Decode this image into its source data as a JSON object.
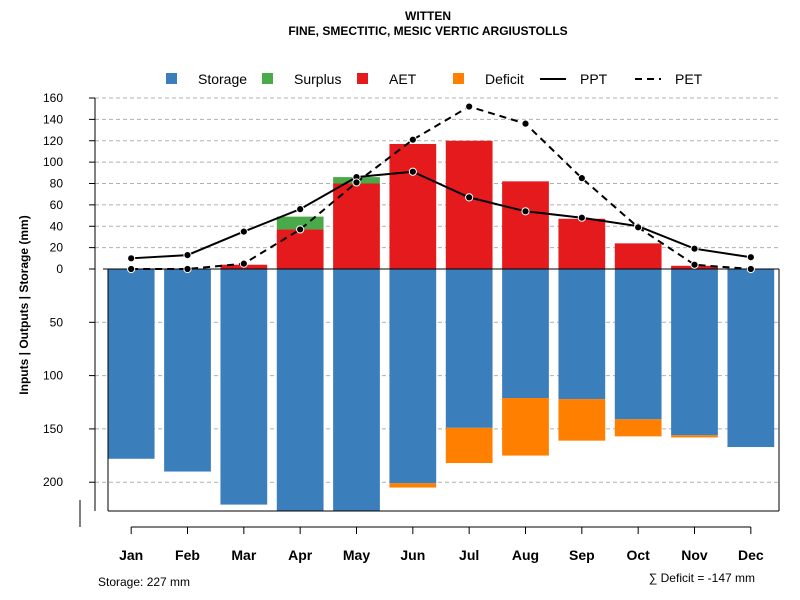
{
  "chart_data": {
    "type": "bar",
    "title": "WITTEN",
    "subtitle": "FINE, SMECTITIC, MESIC VERTIC ARGIUSTOLLS",
    "ylabel": "Inputs | Outputs | Storage    (mm)",
    "ylim_top": [
      0,
      160
    ],
    "ylim_bottom": [
      0,
      227
    ],
    "y_ticks_top": [
      "0",
      "20",
      "40",
      "60",
      "80",
      "100",
      "120",
      "140",
      "160"
    ],
    "y_ticks_bottom": [
      "50",
      "100",
      "150",
      "200"
    ],
    "categories": [
      "Jan",
      "Feb",
      "Mar",
      "Apr",
      "May",
      "Jun",
      "Jul",
      "Aug",
      "Sep",
      "Oct",
      "Nov",
      "Dec"
    ],
    "legend": [
      "Storage",
      "Surplus",
      "AET",
      "Deficit",
      "PPT",
      "PET"
    ],
    "colors": {
      "storage": "#3a7fbb",
      "surplus": "#4aaa4a",
      "aet": "#e41a1c",
      "deficit": "#ff7f00"
    },
    "series": {
      "storage": [
        178,
        190,
        221,
        227,
        227,
        201,
        149,
        121,
        122,
        141,
        156,
        167
      ],
      "deficit": [
        0,
        0,
        0,
        0,
        0,
        4,
        33,
        54,
        39,
        16,
        2,
        0
      ],
      "aet": [
        0,
        0,
        4,
        37,
        80,
        117,
        120,
        82,
        47,
        24,
        3,
        0
      ],
      "surplus": [
        0,
        0,
        0,
        12,
        6,
        0,
        0,
        0,
        0,
        0,
        0,
        0
      ],
      "ppt": [
        10,
        13,
        35,
        56,
        86,
        91,
        67,
        54,
        48,
        40,
        19,
        11
      ],
      "pet": [
        0,
        0,
        5,
        37,
        81,
        121,
        152,
        136,
        85,
        39,
        4,
        0
      ]
    },
    "footer_left": "Storage: 227 mm",
    "footer_right": "∑ Deficit = -147 mm"
  }
}
